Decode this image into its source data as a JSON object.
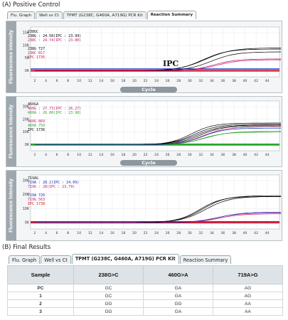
{
  "positive_control": {
    "title": "(A) Positive Control",
    "tabs": [
      "Flu. Graph",
      "Well vs Ct",
      "TPMT (G238C, G460A, A719G) PCR Kit",
      "Reaction Summary"
    ],
    "active_tab": 3,
    "ylabel": "Fluorescence Intensity",
    "xlabel": "Cycle",
    "ipc_annotation": "IPC",
    "x_ticks": [
      "2",
      "4",
      "6",
      "8",
      "10",
      "12",
      "14",
      "16",
      "18",
      "20",
      "22",
      "24",
      "26",
      "28",
      "30",
      "32",
      "34",
      "36",
      "38",
      "40",
      "42",
      "44"
    ],
    "panels": [
      {
        "name": "238GC",
        "y_ticks": [
          "15K",
          "10K",
          "5K",
          "0K"
        ],
        "legend": [
          {
            "text": "238G : 24.58(IPC : 23.99)",
            "color": "#000000"
          },
          {
            "text": "238C : 24.74(IPC : 23.80)",
            "color": "#c0186c"
          },
          {
            "text": "",
            "color": "#000000"
          },
          {
            "text": "238G   727",
            "color": "#000000"
          },
          {
            "text": "238C   817",
            "color": "#c0186c"
          },
          {
            "text": "IPC    1735",
            "color": "#d01010"
          }
        ]
      },
      {
        "name": "460GA",
        "y_ticks": [
          "30K",
          "20K",
          "10K",
          "0K"
        ],
        "legend": [
          {
            "text": "460G : 27.73(IPC : 26.27)",
            "color": "#c0186c"
          },
          {
            "text": "460A : 26.80(IPC : 23.98)",
            "color": "#2aa52a"
          },
          {
            "text": "",
            "color": "#000000"
          },
          {
            "text": "460G   869",
            "color": "#c0186c"
          },
          {
            "text": "460A   750",
            "color": "#2aa52a"
          },
          {
            "text": "IPC    1736",
            "color": "#000000"
          }
        ]
      },
      {
        "name": "719AG",
        "y_ticks": [
          "30K",
          "20K",
          "10K",
          "0K"
        ],
        "legend": [
          {
            "text": "719A : 28.2(IPC : 24.09)",
            "color": "#1030c0"
          },
          {
            "text": "719G : 28(IPC : 23.79)",
            "color": "#c0186c"
          },
          {
            "text": "",
            "color": "#000000"
          },
          {
            "text": "719A   726",
            "color": "#1030c0"
          },
          {
            "text": "719G   563",
            "color": "#c0186c"
          },
          {
            "text": "IPC    1738",
            "color": "#d01010"
          }
        ]
      }
    ]
  },
  "final_results": {
    "title": "(B) Final Results",
    "tabs": [
      "Flu. Graph",
      "Well vs Ct",
      "TPMT (G238C, G460A, A719G) PCR Kit",
      "Reaction Summary"
    ],
    "active_tab": 2,
    "headers": [
      "Sample",
      "238G>C",
      "460G>A",
      "719A>G"
    ],
    "rows": [
      [
        "PC",
        "GC",
        "GA",
        "AG"
      ],
      [
        "1",
        "GC",
        "GA",
        "AG"
      ],
      [
        "2",
        "GG",
        "GG",
        "AA"
      ],
      [
        "3",
        "GG",
        "GA",
        "AA"
      ]
    ]
  },
  "colors": {
    "axis_grey": "#9ea7ad",
    "series_black": "#000000",
    "series_magenta": "#c0186c",
    "series_green": "#2aa52a",
    "series_blue": "#1030c0",
    "series_red": "#d01010"
  }
}
